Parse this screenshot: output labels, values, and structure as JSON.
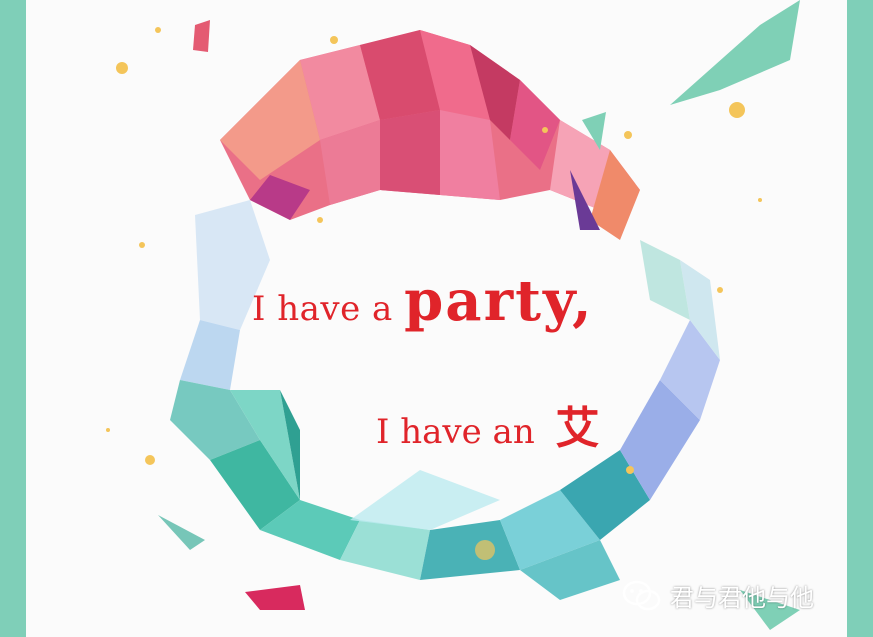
{
  "colors": {
    "frame": "#7fcfb8",
    "text": "#e0242a",
    "warm_top": "#e8607a",
    "cool_bottom": "#5fc6b6",
    "sparkle": "#f4c55a"
  },
  "headline": {
    "line1_prefix": "I have a",
    "line1_big": "party,",
    "line2_prefix": "I have an",
    "line2_big": "艾"
  },
  "watermark": {
    "icon": "wechat-icon",
    "text": "君与君他与他"
  }
}
